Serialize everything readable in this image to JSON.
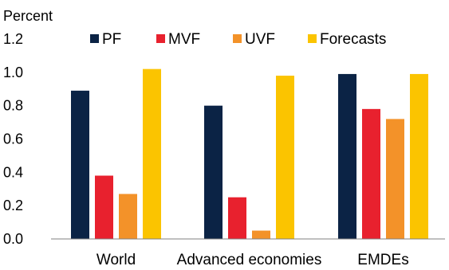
{
  "chart_data": {
    "type": "bar",
    "ylabel": "Percent",
    "ylim": [
      0,
      1.2
    ],
    "yticks": [
      "0.0",
      "0.2",
      "0.4",
      "0.6",
      "0.8",
      "1.0",
      "1.2"
    ],
    "categories": [
      "World",
      "Advanced economies",
      "EMDEs"
    ],
    "series": [
      {
        "name": "PF",
        "color": "#0b2345",
        "values": [
          0.89,
          0.8,
          0.99
        ]
      },
      {
        "name": "MVF",
        "color": "#e8212e",
        "values": [
          0.38,
          0.25,
          0.78
        ]
      },
      {
        "name": "UVF",
        "color": "#f39229",
        "values": [
          0.27,
          0.05,
          0.72
        ]
      },
      {
        "name": "Forecasts",
        "color": "#fbc400",
        "values": [
          1.02,
          0.98,
          0.99
        ]
      }
    ],
    "grid": false,
    "legend_position": "top"
  }
}
